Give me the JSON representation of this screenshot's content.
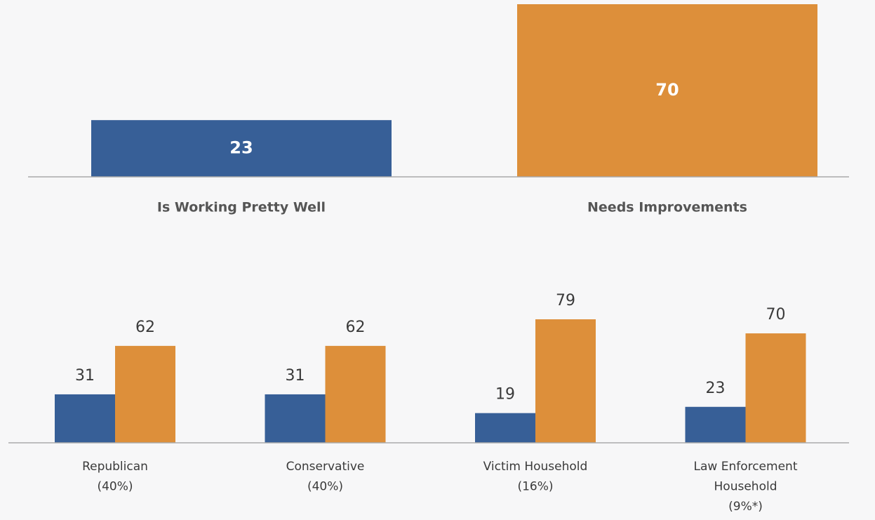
{
  "chart_data": [
    {
      "type": "bar",
      "categories": [
        "Is Working Pretty Well",
        "Needs Improvements"
      ],
      "values": [
        23,
        70
      ],
      "colors": [
        "#375f97",
        "#dd8f3a"
      ]
    },
    {
      "type": "grouped-bar",
      "categories": [
        [
          "Republican",
          "(40%)"
        ],
        [
          "Conservative",
          "(40%)"
        ],
        [
          "Victim Household",
          "(16%)"
        ],
        [
          "Law Enforcement",
          "Household",
          "(9%*)"
        ]
      ],
      "series": [
        {
          "color": "#375f97",
          "values": [
            31,
            31,
            19,
            23
          ]
        },
        {
          "color": "#dd8f3a",
          "values": [
            62,
            62,
            79,
            70
          ]
        }
      ]
    }
  ]
}
